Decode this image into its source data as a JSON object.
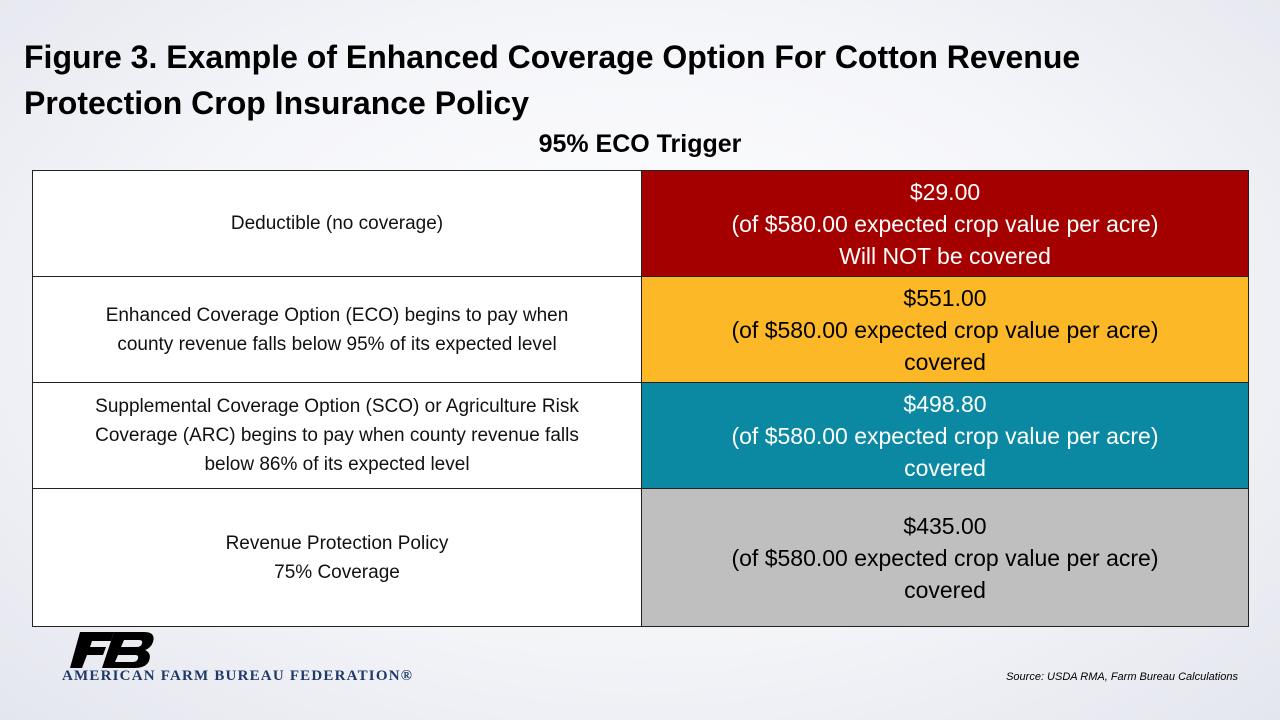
{
  "title": {
    "line1": "Figure 3. Example of Enhanced Coverage Option For Cotton Revenue",
    "line2": "Protection Crop Insurance Policy"
  },
  "subtitle": "95% ECO Trigger",
  "rows": [
    {
      "label": [
        "Deductible (no coverage)"
      ],
      "value": [
        "$29.00",
        "(of $580.00 expected crop value per acre)",
        "Will NOT be covered"
      ],
      "color": "#a50000",
      "text_color": "#ffffff"
    },
    {
      "label": [
        "Enhanced Coverage Option (ECO) begins to pay when",
        "county revenue falls below 95% of its expected level"
      ],
      "value": [
        "$551.00",
        "(of $580.00 expected crop value per acre)",
        "covered"
      ],
      "color": "#fdb827",
      "text_color": "#000000"
    },
    {
      "label": [
        "Supplemental Coverage Option (SCO) or Agriculture Risk",
        "Coverage (ARC) begins to pay when county revenue falls",
        "below 86% of its expected level"
      ],
      "value": [
        "$498.80",
        "(of $580.00 expected crop value per acre)",
        "covered"
      ],
      "color": "#0b89a3",
      "text_color": "#ffffff"
    },
    {
      "label": [
        "Revenue Protection Policy",
        "75% Coverage"
      ],
      "value": [
        "$435.00",
        "(of $580.00 expected crop value per acre)",
        "covered"
      ],
      "color": "#bfbfbf",
      "text_color": "#000000"
    }
  ],
  "logo": {
    "text": "AMERICAN FARM BUREAU FEDERATION®",
    "icon": "fb-logo-icon",
    "color": "#1f3a68"
  },
  "source": "Source: USDA RMA, Farm Bureau Calculations"
}
